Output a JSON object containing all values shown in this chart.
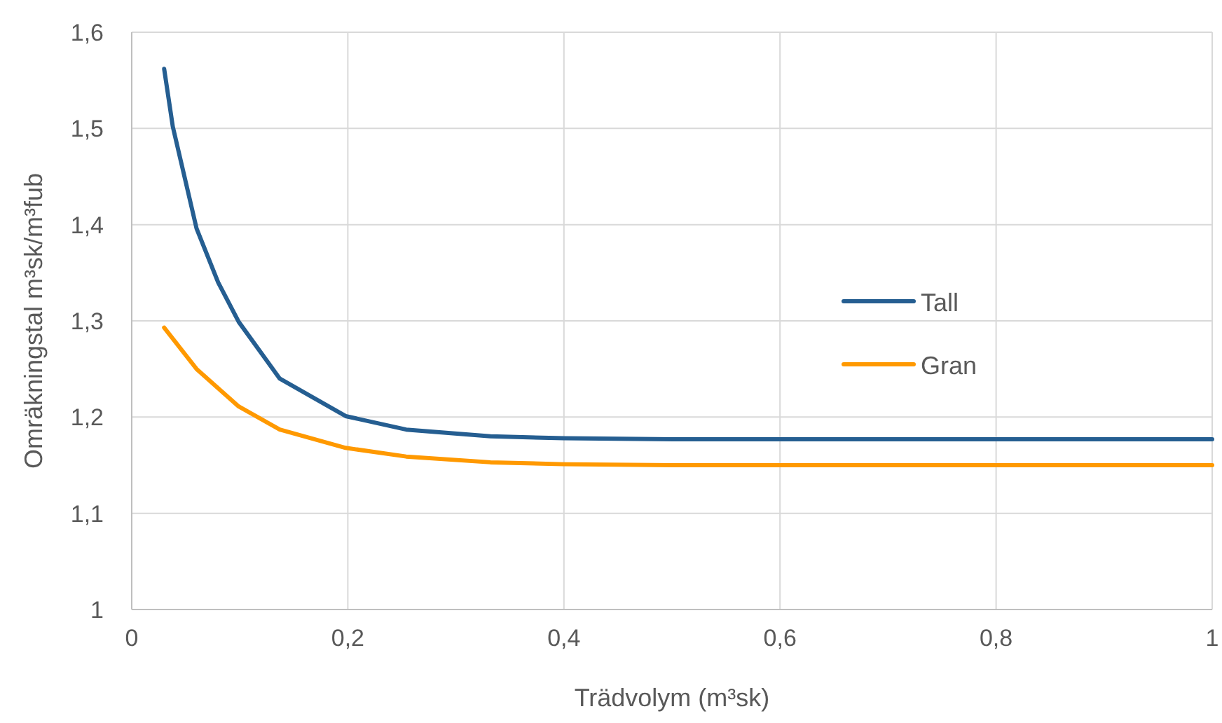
{
  "chart_data": {
    "type": "line",
    "xlabel": "Trädvolym (m³sk)",
    "ylabel": "Omräkningstal m³sk/m³fub",
    "xlim": [
      0,
      1
    ],
    "xticks": [
      0,
      {
        "value": 0.2,
        "label": "0,2"
      },
      {
        "value": 0.4,
        "label": "0,4"
      },
      {
        "value": 0.6,
        "label": "0,6"
      },
      {
        "value": 0.8,
        "label": "0,8"
      },
      1
    ],
    "ylim": [
      1,
      1.6
    ],
    "yticks": [
      1,
      {
        "value": 1.1,
        "label": "1,1"
      },
      {
        "value": 1.2,
        "label": "1,2"
      },
      {
        "value": 1.3,
        "label": "1,3"
      },
      {
        "value": 1.4,
        "label": "1,4"
      },
      {
        "value": 1.5,
        "label": "1,5"
      },
      {
        "value": 1.6,
        "label": "1,6"
      }
    ],
    "grid": true,
    "legend": "right",
    "marker": "none",
    "line_style": "solid",
    "series": [
      {
        "name": "Tall",
        "color": "#255e91",
        "x": [
          0.03,
          0.038,
          0.06,
          0.08,
          0.099,
          0.137,
          0.198,
          0.254,
          0.332,
          0.4,
          0.5,
          0.7,
          1
        ],
        "values": [
          1.562,
          1.502,
          1.396,
          1.34,
          1.299,
          1.24,
          1.201,
          1.187,
          1.18,
          1.178,
          1.177,
          1.177,
          1.177
        ]
      },
      {
        "name": "Gran",
        "color": "#ff9900",
        "x": [
          0.03,
          0.06,
          0.099,
          0.137,
          0.198,
          0.254,
          0.332,
          0.4,
          0.5,
          0.7,
          1
        ],
        "values": [
          1.293,
          1.25,
          1.211,
          1.187,
          1.168,
          1.159,
          1.153,
          1.151,
          1.15,
          1.15,
          1.15
        ]
      }
    ]
  }
}
